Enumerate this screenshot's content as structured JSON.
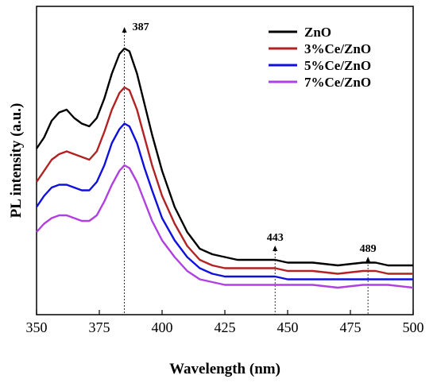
{
  "chart_data": {
    "type": "line",
    "xlabel": "Wavelength (nm)",
    "ylabel": "PL intensity  (a.u.)",
    "xlim": [
      350,
      500
    ],
    "ylim": [
      0,
      100
    ],
    "x_ticks": [
      350,
      375,
      400,
      425,
      450,
      475,
      500
    ],
    "y_ticks_shown": false,
    "grid": false,
    "legend_position": "top-right",
    "annotations": [
      {
        "text": "387",
        "x": 385
      },
      {
        "text": "443",
        "x": 445
      },
      {
        "text": "489",
        "x": 482
      }
    ],
    "series": [
      {
        "name": "ZnO",
        "color": "#000000",
        "x": [
          350,
          353,
          356,
          359,
          362,
          365,
          368,
          371,
          374,
          377,
          380,
          383,
          385,
          387,
          390,
          393,
          396,
          400,
          405,
          410,
          415,
          420,
          425,
          430,
          440,
          445,
          450,
          460,
          470,
          480,
          485,
          490,
          500
        ],
        "y": [
          58,
          62,
          68,
          71,
          72,
          69,
          67,
          66,
          69,
          76,
          85,
          92,
          94,
          93,
          85,
          74,
          63,
          50,
          37,
          28,
          22,
          20,
          19,
          18,
          18,
          18,
          17,
          17,
          16,
          17,
          17,
          16,
          16
        ]
      },
      {
        "name": "3%Ce/ZnO",
        "color": "#b22222",
        "x": [
          350,
          353,
          356,
          359,
          362,
          365,
          368,
          371,
          374,
          377,
          380,
          383,
          385,
          387,
          390,
          393,
          396,
          400,
          405,
          410,
          415,
          420,
          425,
          430,
          440,
          445,
          450,
          460,
          470,
          480,
          485,
          490,
          500
        ],
        "y": [
          46,
          50,
          54,
          56,
          57,
          56,
          55,
          54,
          57,
          64,
          72,
          78,
          80,
          79,
          72,
          62,
          52,
          41,
          31,
          23,
          18,
          16,
          15,
          15,
          15,
          15,
          14,
          14,
          13,
          14,
          14,
          13,
          13
        ]
      },
      {
        "name": "5%Ce/ZnO",
        "color": "#1010dd",
        "x": [
          350,
          353,
          356,
          359,
          362,
          365,
          368,
          371,
          374,
          377,
          380,
          383,
          385,
          387,
          390,
          393,
          396,
          400,
          405,
          410,
          415,
          420,
          425,
          430,
          440,
          445,
          450,
          460,
          470,
          480,
          485,
          490,
          500
        ],
        "y": [
          37,
          41,
          44,
          45,
          45,
          44,
          43,
          43,
          46,
          52,
          60,
          65,
          67,
          66,
          60,
          51,
          43,
          33,
          25,
          19,
          15,
          13,
          12,
          12,
          12,
          12,
          11,
          11,
          11,
          11,
          11,
          11,
          11
        ]
      },
      {
        "name": "7%Ce/ZnO",
        "color": "#b040e0",
        "x": [
          350,
          353,
          356,
          359,
          362,
          365,
          368,
          371,
          374,
          377,
          380,
          383,
          385,
          387,
          390,
          393,
          396,
          400,
          405,
          410,
          415,
          420,
          425,
          430,
          440,
          445,
          450,
          460,
          470,
          480,
          485,
          490,
          500
        ],
        "y": [
          28,
          31,
          33,
          34,
          34,
          33,
          32,
          32,
          34,
          39,
          45,
          50,
          52,
          51,
          46,
          39,
          32,
          25,
          19,
          14,
          11,
          10,
          9,
          9,
          9,
          9,
          9,
          9,
          8,
          9,
          9,
          9,
          8
        ]
      }
    ]
  }
}
